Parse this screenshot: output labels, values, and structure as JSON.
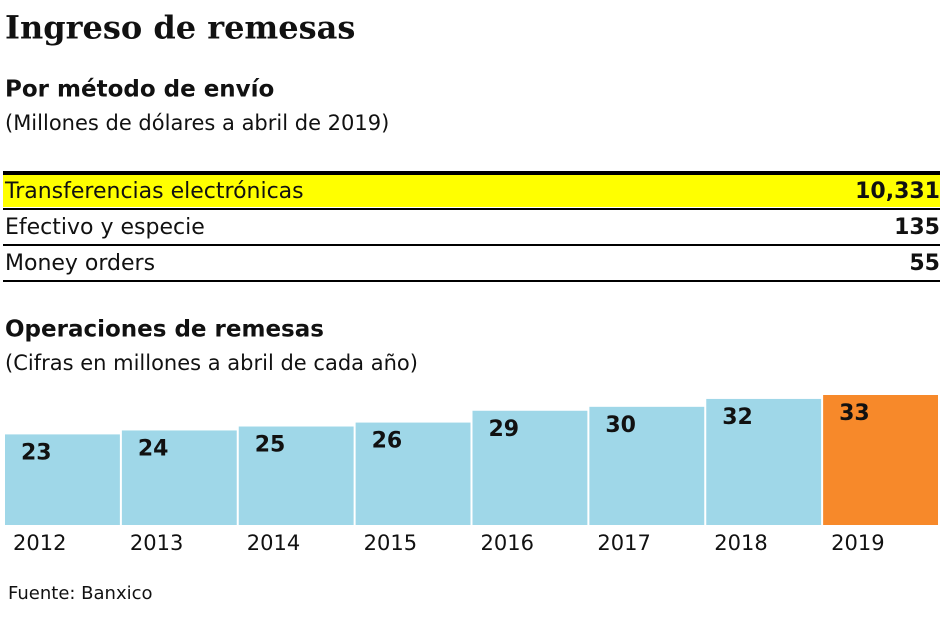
{
  "title": "Ingreso de remesas",
  "table_section": {
    "heading": "Por método de envío",
    "note": "(Millones de dólares a abril de 2019)",
    "rows": [
      [
        "Transferencias electrónicas",
        "10,331"
      ],
      [
        "Efectivo y especie",
        "135"
      ],
      [
        "Money orders",
        "55"
      ]
    ]
  },
  "chart_data": {
    "type": "bar",
    "title": "Operaciones de remesas",
    "subtitle": "(Cifras en millones a abril de cada año)",
    "categories": [
      "2012",
      "2013",
      "2014",
      "2015",
      "2016",
      "2017",
      "2018",
      "2019"
    ],
    "values": [
      23,
      24,
      25,
      26,
      29,
      30,
      32,
      33
    ],
    "colors": [
      "#9fd7e8",
      "#9fd7e8",
      "#9fd7e8",
      "#9fd7e8",
      "#9fd7e8",
      "#9fd7e8",
      "#9fd7e8",
      "#f7892a"
    ]
  },
  "source": "Fuente: Banxico"
}
